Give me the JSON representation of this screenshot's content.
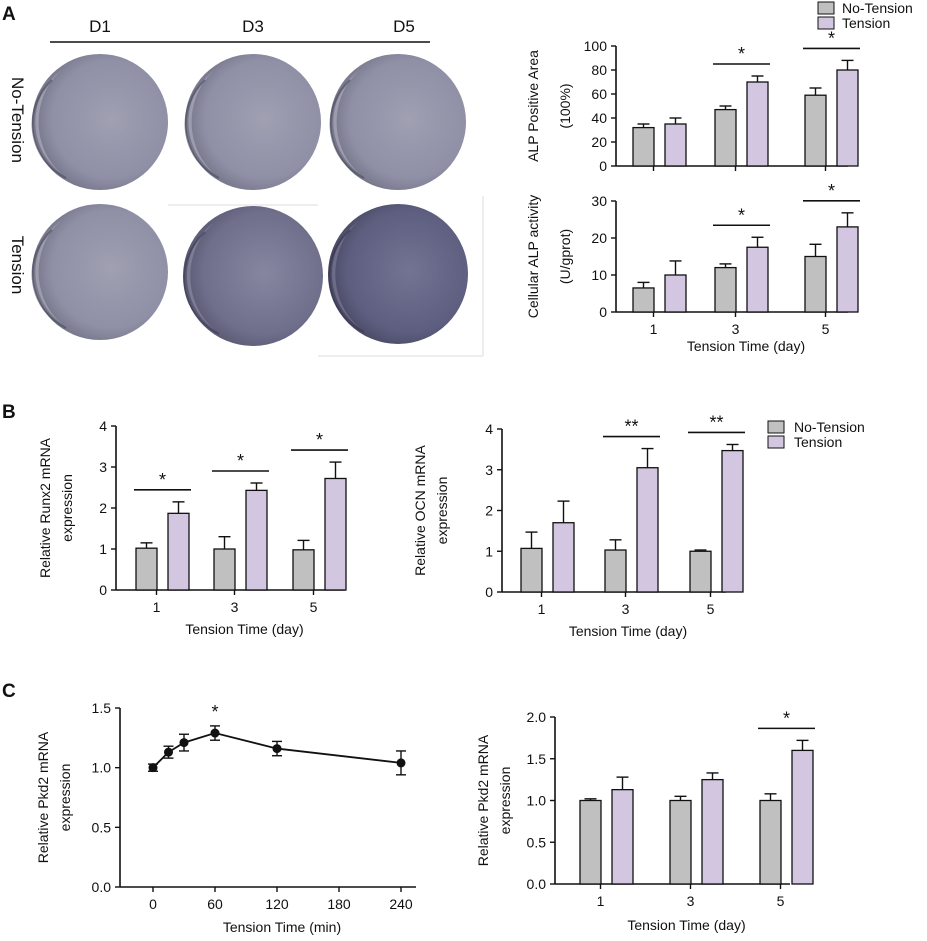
{
  "colors": {
    "no_tension": "#c0c0c0",
    "tension": "#d2c6e0",
    "axis": "#111111",
    "line": "#111111"
  },
  "panel_labels": {
    "a": "A",
    "b": "B",
    "c": "C"
  },
  "photos": {
    "columns": [
      "D1",
      "D3",
      "D5"
    ],
    "rows": [
      "No-Tension",
      "Tension"
    ]
  },
  "legend": {
    "no_tension": "No-Tension",
    "tension": "Tension"
  },
  "chart_data": [
    {
      "id": "alp-area",
      "type": "bar",
      "ylabel": [
        "ALP Positive Area",
        "(100%)"
      ],
      "xlabel": "",
      "categories": [
        "1",
        "3",
        "5"
      ],
      "show_tick_labels": false,
      "ylim": [
        0,
        100
      ],
      "yticks": [
        0,
        20,
        40,
        60,
        80,
        100
      ],
      "series": [
        {
          "name": "No-Tension",
          "values": [
            32,
            47,
            59
          ],
          "errors": [
            3,
            3,
            6
          ]
        },
        {
          "name": "Tension",
          "values": [
            35,
            70,
            80
          ],
          "errors": [
            5,
            5,
            8
          ]
        }
      ],
      "significance": [
        {
          "category": 1,
          "label": "*"
        },
        {
          "category": 2,
          "label": "*"
        }
      ]
    },
    {
      "id": "alp-activity",
      "type": "bar",
      "ylabel": [
        "Cellular ALP activity",
        "(U/gprot)"
      ],
      "xlabel": "Tension Time (day)",
      "categories": [
        "1",
        "3",
        "5"
      ],
      "show_tick_labels": true,
      "ylim": [
        0,
        30
      ],
      "yticks": [
        0,
        10,
        20,
        30
      ],
      "series": [
        {
          "name": "No-Tension",
          "values": [
            6.5,
            12,
            15
          ],
          "errors": [
            1.5,
            1,
            3.3
          ]
        },
        {
          "name": "Tension",
          "values": [
            10,
            17.5,
            23
          ],
          "errors": [
            3.8,
            2.7,
            3.8
          ]
        }
      ],
      "significance": [
        {
          "category": 1,
          "label": "*"
        },
        {
          "category": 2,
          "label": "*"
        }
      ]
    },
    {
      "id": "runx2",
      "type": "bar",
      "ylabel": [
        "Relative Runx2 mRNA",
        "expression"
      ],
      "xlabel": "Tension Time (day)",
      "categories": [
        "1",
        "3",
        "5"
      ],
      "show_tick_labels": true,
      "ylim": [
        0,
        4
      ],
      "yticks": [
        0,
        1,
        2,
        3,
        4
      ],
      "series": [
        {
          "name": "No-Tension",
          "values": [
            1.02,
            1.0,
            0.98
          ],
          "errors": [
            0.13,
            0.3,
            0.23
          ]
        },
        {
          "name": "Tension",
          "values": [
            1.87,
            2.43,
            2.72
          ],
          "errors": [
            0.28,
            0.18,
            0.4
          ]
        }
      ],
      "significance": [
        {
          "category": 0,
          "label": "*"
        },
        {
          "category": 1,
          "label": "*"
        },
        {
          "category": 2,
          "label": "*"
        }
      ]
    },
    {
      "id": "ocn",
      "type": "bar",
      "ylabel": [
        "Relative OCN mRNA",
        "expression"
      ],
      "xlabel": "Tension Time (day)",
      "categories": [
        "1",
        "3",
        "5"
      ],
      "show_tick_labels": true,
      "ylim": [
        0,
        4
      ],
      "yticks": [
        0,
        1,
        2,
        3,
        4
      ],
      "series": [
        {
          "name": "No-Tension",
          "values": [
            1.07,
            1.03,
            1.0
          ],
          "errors": [
            0.4,
            0.25,
            0.03
          ]
        },
        {
          "name": "Tension",
          "values": [
            1.7,
            3.05,
            3.47
          ],
          "errors": [
            0.53,
            0.47,
            0.15
          ]
        }
      ],
      "significance": [
        {
          "category": 1,
          "label": "**"
        },
        {
          "category": 2,
          "label": "**"
        }
      ]
    },
    {
      "id": "pkd2-time",
      "type": "line",
      "ylabel": [
        "Relative Pkd2  mRNA",
        "expression"
      ],
      "xlabel": "Tension Time (min)",
      "x": [
        0,
        15,
        30,
        60,
        120,
        240
      ],
      "y": [
        1.0,
        1.13,
        1.21,
        1.29,
        1.16,
        1.04
      ],
      "errors": [
        0.03,
        0.05,
        0.07,
        0.06,
        0.06,
        0.1
      ],
      "xlim": [
        -20,
        260
      ],
      "xticks": [
        0,
        60,
        120,
        180,
        240
      ],
      "ylim": [
        0,
        1.5
      ],
      "yticks": [
        "0.0",
        "0.5",
        "1.0",
        "1.5"
      ],
      "significance": [
        {
          "x": 60,
          "label": "*"
        }
      ]
    },
    {
      "id": "pkd2-day",
      "type": "bar",
      "ylabel": [
        "Relative Pkd2 mRNA",
        "expression"
      ],
      "xlabel": "Tension Time (day)",
      "categories": [
        "1",
        "3",
        "5"
      ],
      "show_tick_labels": true,
      "ylim": [
        0,
        2.0
      ],
      "yticks": [
        "0.0",
        "0.5",
        "1.0",
        "1.5",
        "2.0"
      ],
      "series": [
        {
          "name": "No-Tension",
          "values": [
            1.0,
            1.0,
            1.0
          ],
          "errors": [
            0.02,
            0.05,
            0.08
          ]
        },
        {
          "name": "Tension",
          "values": [
            1.13,
            1.25,
            1.6
          ],
          "errors": [
            0.15,
            0.08,
            0.12
          ]
        }
      ],
      "significance": [
        {
          "category": 2,
          "label": "*"
        }
      ]
    }
  ]
}
